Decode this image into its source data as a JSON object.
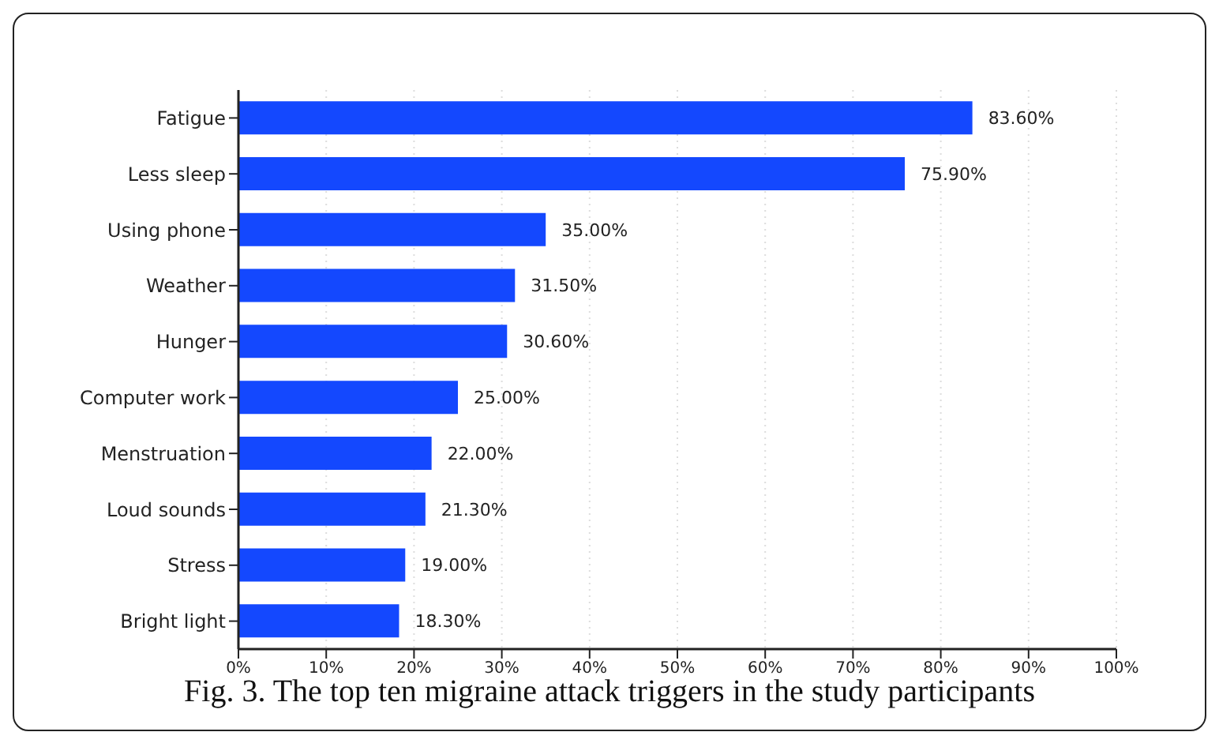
{
  "chart_data": {
    "type": "bar",
    "orientation": "horizontal",
    "title": "Fig. 3. The top ten migraine attack triggers in the study participants",
    "categories": [
      "Fatigue",
      "Less sleep",
      "Using phone",
      "Weather",
      "Hunger",
      "Computer work",
      "Menstruation",
      "Loud sounds",
      "Stress",
      "Bright light"
    ],
    "values": [
      83.6,
      75.9,
      35.0,
      31.5,
      30.6,
      25.0,
      22.0,
      21.3,
      19.0,
      18.3
    ],
    "value_labels": [
      "83.60%",
      "75.90%",
      "35.00%",
      "31.50%",
      "30.60%",
      "25.00%",
      "22.00%",
      "21.30%",
      "19.00%",
      "18.30%"
    ],
    "color": "#1448fe",
    "xlim": [
      0,
      100
    ],
    "xticks": [
      {
        "value": 0,
        "label": "0%"
      },
      {
        "value": 10,
        "label": "10%"
      },
      {
        "value": 20,
        "label": "20%"
      },
      {
        "value": 30,
        "label": "30%"
      },
      {
        "value": 40,
        "label": "40%"
      },
      {
        "value": 50,
        "label": "50%"
      },
      {
        "value": 60,
        "label": "60%"
      },
      {
        "value": 70,
        "label": "70%"
      },
      {
        "value": 80,
        "label": "80%"
      },
      {
        "value": 90,
        "label": "90%"
      },
      {
        "value": 100,
        "label": "100%"
      }
    ],
    "grid": "x",
    "legend": false
  }
}
